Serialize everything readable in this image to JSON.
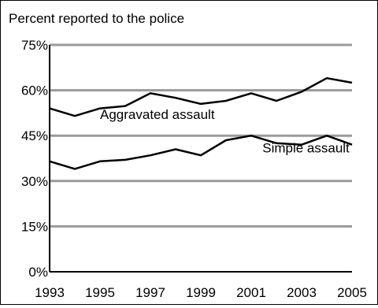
{
  "chart_data": {
    "type": "line",
    "title": "Percent reported to the police",
    "xlabel": "",
    "ylabel": "",
    "ylim": [
      0,
      75
    ],
    "xlim": [
      1993,
      2005
    ],
    "grid": true,
    "yticks": [
      {
        "value": 0,
        "label": "0%"
      },
      {
        "value": 15,
        "label": "15%"
      },
      {
        "value": 30,
        "label": "30%"
      },
      {
        "value": 45,
        "label": "45%"
      },
      {
        "value": 60,
        "label": "60%"
      },
      {
        "value": 75,
        "label": "75%"
      }
    ],
    "xticks": [
      {
        "value": 1993,
        "label": "1993"
      },
      {
        "value": 1995,
        "label": "1995"
      },
      {
        "value": 1997,
        "label": "1997"
      },
      {
        "value": 1999,
        "label": "1999"
      },
      {
        "value": 2001,
        "label": "2001"
      },
      {
        "value": 2003,
        "label": "2003"
      },
      {
        "value": 2005,
        "label": "2005"
      }
    ],
    "x": [
      1993,
      1994,
      1995,
      1996,
      1997,
      1998,
      1999,
      2000,
      2001,
      2002,
      2003,
      2004,
      2005
    ],
    "series": [
      {
        "name": "Aggravated assault",
        "values": [
          54,
          51.5,
          54,
          54.8,
          59,
          57.5,
          55.5,
          56.5,
          59,
          56.5,
          59.5,
          64,
          62.5
        ]
      },
      {
        "name": "Simple assault",
        "values": [
          36.5,
          34,
          36.5,
          37,
          38.5,
          40.5,
          38.5,
          43.5,
          45,
          42.5,
          42,
          45,
          42
        ]
      }
    ]
  }
}
